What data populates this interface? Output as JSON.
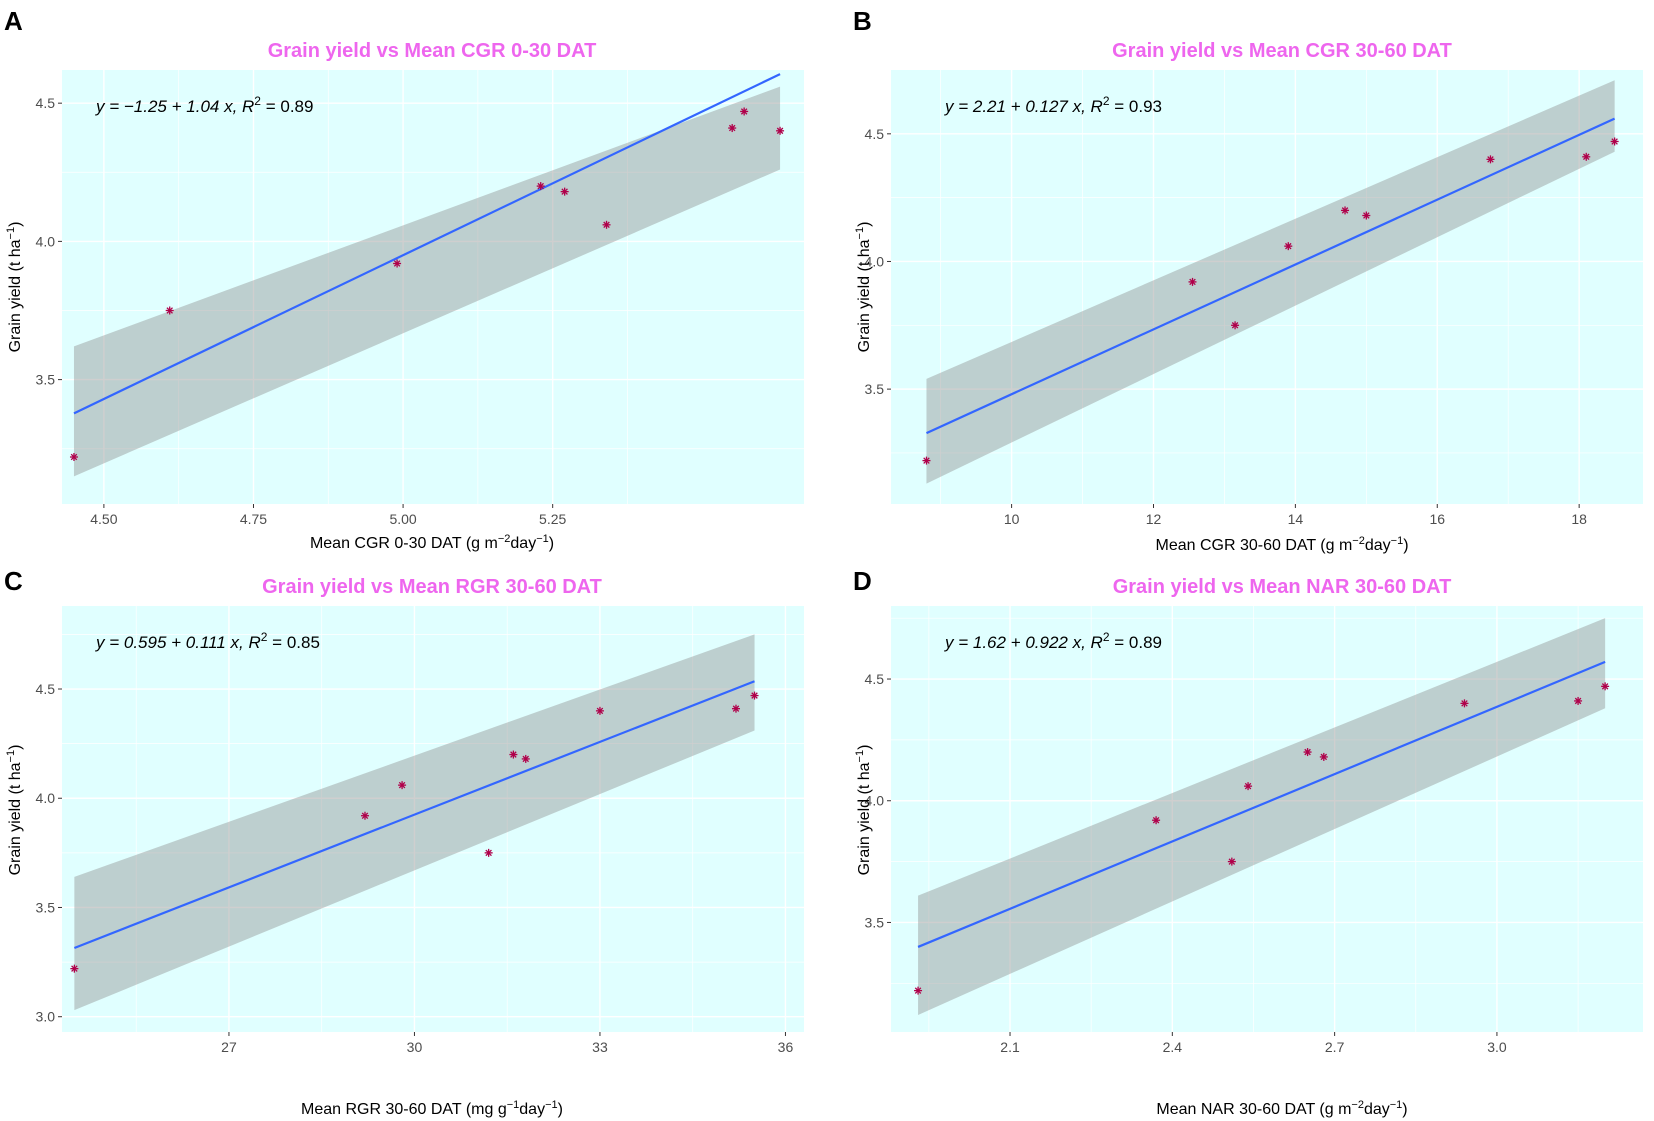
{
  "figure": {
    "title_color": "#ee66ee",
    "panel_background": "#e0ffff",
    "fit_line_color": "#3366ff",
    "ribbon_color": "#8c8c8c",
    "point_color": "#b0004a"
  },
  "chart_data": [
    {
      "panel": "A",
      "type": "scatter",
      "title": "Grain yield vs Mean CGR 0-30 DAT",
      "xlabel": "Mean CGR 0-30 DAT (g  m",
      "xlabel_sup1": "−2",
      "xlabel_mid": "day",
      "xlabel_sup2": "−1",
      "xlabel_end": ")",
      "ylabel": "Grain yield (t ha",
      "ylabel_sup": "−1",
      "ylabel_end": ")",
      "equation": "y = −1.25 + 1.04 x, R",
      "equation_sup": "2",
      "equation_end": " = 0.89",
      "xlim": [
        4.43,
        5.67
      ],
      "ylim": [
        3.05,
        4.62
      ],
      "xticks": [
        4.5,
        4.75,
        5.0,
        5.25
      ],
      "xtick_labels": [
        "4.50",
        "4.75",
        "5.00",
        "5.25"
      ],
      "yticks": [
        3.5,
        4.0,
        4.5
      ],
      "ytick_labels": [
        "3.5",
        "4.0",
        "4.5"
      ],
      "fit": {
        "intercept": -1.25,
        "slope": 1.04,
        "x_start": 4.45,
        "x_end": 5.63,
        "ci_lower": [
          3.15,
          4.26
        ],
        "ci_upper": [
          3.62,
          4.56
        ]
      },
      "points": [
        {
          "x": 4.45,
          "y": 3.22
        },
        {
          "x": 4.61,
          "y": 3.75
        },
        {
          "x": 4.99,
          "y": 3.92
        },
        {
          "x": 5.23,
          "y": 4.2
        },
        {
          "x": 5.27,
          "y": 4.18
        },
        {
          "x": 5.34,
          "y": 4.06
        },
        {
          "x": 5.55,
          "y": 4.41
        },
        {
          "x": 5.57,
          "y": 4.47
        },
        {
          "x": 5.63,
          "y": 4.4
        }
      ]
    },
    {
      "panel": "B",
      "type": "scatter",
      "title": "Grain yield vs Mean CGR 30-60 DAT",
      "xlabel": "Mean CGR 30-60 DAT (g  m",
      "xlabel_sup1": "−2",
      "xlabel_mid": "day",
      "xlabel_sup2": "−1",
      "xlabel_end": ")",
      "ylabel": "Grain yield (t ha",
      "ylabel_sup": "−1",
      "ylabel_end": ")",
      "equation": "y = 2.21 + 0.127 x, R",
      "equation_sup": "2",
      "equation_end": " = 0.93",
      "xlim": [
        8.3,
        18.9
      ],
      "ylim": [
        3.05,
        4.75
      ],
      "xticks": [
        10,
        12,
        14,
        16,
        18
      ],
      "xtick_labels": [
        "10",
        "12",
        "14",
        "16",
        "18"
      ],
      "yticks": [
        3.5,
        4.0,
        4.5
      ],
      "ytick_labels": [
        "3.5",
        "4.0",
        "4.5"
      ],
      "fit": {
        "intercept": 2.21,
        "slope": 0.127,
        "x_start": 8.8,
        "x_end": 18.5,
        "ci_lower": [
          3.13,
          4.43
        ],
        "ci_upper": [
          3.54,
          4.71
        ]
      },
      "points": [
        {
          "x": 8.8,
          "y": 3.22
        },
        {
          "x": 12.55,
          "y": 3.92
        },
        {
          "x": 13.15,
          "y": 3.75
        },
        {
          "x": 13.9,
          "y": 4.06
        },
        {
          "x": 14.7,
          "y": 4.2
        },
        {
          "x": 15.0,
          "y": 4.18
        },
        {
          "x": 16.75,
          "y": 4.4
        },
        {
          "x": 18.1,
          "y": 4.41
        },
        {
          "x": 18.5,
          "y": 4.47
        }
      ]
    },
    {
      "panel": "C",
      "type": "scatter",
      "title": "Grain yield vs Mean RGR 30-60 DAT",
      "xlabel": "Mean RGR 30-60 DAT (mg  g",
      "xlabel_sup1": "−1",
      "xlabel_mid": "day",
      "xlabel_sup2": "−1",
      "xlabel_end": ")",
      "ylabel": "Grain yield (t ha",
      "ylabel_sup": "−1",
      "ylabel_end": ")",
      "equation": "y = 0.595 + 0.111 x, R",
      "equation_sup": "2",
      "equation_end": " = 0.85",
      "xlim": [
        24.3,
        36.3
      ],
      "ylim": [
        2.93,
        4.88
      ],
      "xticks": [
        27,
        30,
        33,
        36
      ],
      "xtick_labels": [
        "27",
        "30",
        "33",
        "36"
      ],
      "yticks": [
        3.0,
        3.5,
        4.0,
        4.5
      ],
      "ytick_labels": [
        "3.0",
        "3.5",
        "4.0",
        "4.5"
      ],
      "fit": {
        "intercept": 0.595,
        "slope": 0.111,
        "x_start": 24.5,
        "x_end": 35.5,
        "ci_lower": [
          3.03,
          4.31
        ],
        "ci_upper": [
          3.64,
          4.75
        ]
      },
      "points": [
        {
          "x": 24.5,
          "y": 3.22
        },
        {
          "x": 29.2,
          "y": 3.92
        },
        {
          "x": 29.8,
          "y": 4.06
        },
        {
          "x": 31.2,
          "y": 3.75
        },
        {
          "x": 31.6,
          "y": 4.2
        },
        {
          "x": 31.8,
          "y": 4.18
        },
        {
          "x": 33.0,
          "y": 4.4
        },
        {
          "x": 35.2,
          "y": 4.41
        },
        {
          "x": 35.5,
          "y": 4.47
        }
      ]
    },
    {
      "panel": "D",
      "type": "scatter",
      "title": "Grain yield vs Mean NAR 30-60 DAT",
      "xlabel": "Mean NAR 30-60 DAT (g  m",
      "xlabel_sup1": "−2",
      "xlabel_mid": "day",
      "xlabel_sup2": "−1",
      "xlabel_end": ")",
      "ylabel": "Grain yield (t ha",
      "ylabel_sup": "−1",
      "ylabel_end": ")",
      "equation": "y = 1.62 + 0.922 x, R",
      "equation_sup": "2",
      "equation_end": " = 0.89",
      "xlim": [
        1.88,
        3.27
      ],
      "ylim": [
        3.05,
        4.8
      ],
      "xticks": [
        2.1,
        2.4,
        2.7,
        3.0
      ],
      "xtick_labels": [
        "2.1",
        "2.4",
        "2.7",
        "3.0"
      ],
      "yticks": [
        3.5,
        4.0,
        4.5
      ],
      "ytick_labels": [
        "3.5",
        "4.0",
        "4.5"
      ],
      "fit": {
        "intercept": 1.62,
        "slope": 0.922,
        "x_start": 1.93,
        "x_end": 3.2,
        "ci_lower": [
          3.12,
          4.38
        ],
        "ci_upper": [
          3.61,
          4.75
        ]
      },
      "points": [
        {
          "x": 1.93,
          "y": 3.22
        },
        {
          "x": 2.37,
          "y": 3.92
        },
        {
          "x": 2.51,
          "y": 3.75
        },
        {
          "x": 2.54,
          "y": 4.06
        },
        {
          "x": 2.65,
          "y": 4.2
        },
        {
          "x": 2.68,
          "y": 4.18
        },
        {
          "x": 2.94,
          "y": 4.4
        },
        {
          "x": 3.15,
          "y": 4.41
        },
        {
          "x": 3.2,
          "y": 4.47
        }
      ]
    }
  ]
}
